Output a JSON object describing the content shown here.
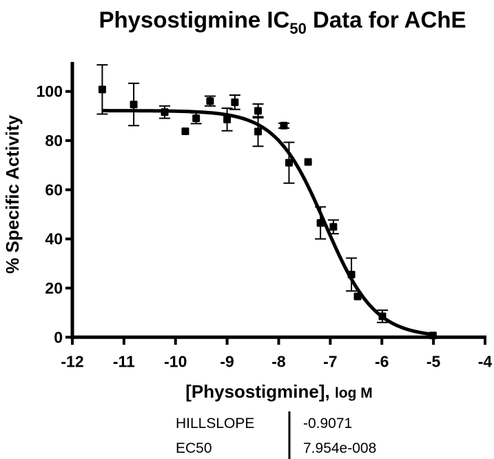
{
  "chart_data": {
    "type": "scatter",
    "title": "Physostigmine IC",
    "title_subscript": "50",
    "title_suffix": " Data for AChE",
    "xlabel": "[Physostigmine], ",
    "xlabel_suffix": "log M",
    "ylabel": "% Specific Activity",
    "xlim": [
      -12,
      -4
    ],
    "ylim": [
      0,
      112
    ],
    "xticks": [
      -12,
      -11,
      -10,
      -9,
      -8,
      -7,
      -6,
      -5,
      -4
    ],
    "xtick_labels": [
      "-12",
      "-11",
      "-10",
      "-9",
      "-8",
      "-7",
      "-6",
      "-5",
      "-4"
    ],
    "yticks": [
      0,
      20,
      40,
      60,
      80,
      100
    ],
    "ytick_labels": [
      "0",
      "20",
      "40",
      "60",
      "80",
      "100"
    ],
    "grid": false,
    "series": [
      {
        "name": "Physostigmine",
        "marker": "square",
        "color": "#000000",
        "points": [
          {
            "x": -11.42,
            "y": 100.8,
            "err": 10.0
          },
          {
            "x": -10.81,
            "y": 94.7,
            "err": 8.6
          },
          {
            "x": -10.21,
            "y": 91.6,
            "err": 2.5
          },
          {
            "x": -9.81,
            "y": 83.8,
            "err": null
          },
          {
            "x": -9.6,
            "y": 89.1,
            "err": 2.2
          },
          {
            "x": -9.33,
            "y": 96.1,
            "err": 2.0
          },
          {
            "x": -9.0,
            "y": 88.6,
            "err": 4.6
          },
          {
            "x": -8.85,
            "y": 95.6,
            "err": 2.9
          },
          {
            "x": -8.4,
            "y": 92.1,
            "err": 2.8
          },
          {
            "x": -8.4,
            "y": 83.7,
            "err": 6.0
          },
          {
            "x": -7.9,
            "y": 86.1,
            "err": 1.0
          },
          {
            "x": -7.8,
            "y": 71.0,
            "err": 8.3
          },
          {
            "x": -7.43,
            "y": 71.3,
            "err": null
          },
          {
            "x": -7.19,
            "y": 46.5,
            "err": 6.5
          },
          {
            "x": -6.94,
            "y": 44.9,
            "err": 2.8
          },
          {
            "x": -6.59,
            "y": 25.5,
            "err": 6.7
          },
          {
            "x": -6.47,
            "y": 16.6,
            "err": null
          },
          {
            "x": -5.99,
            "y": 8.5,
            "err": 2.5
          },
          {
            "x": -5.01,
            "y": 0.7,
            "err": null
          }
        ]
      }
    ],
    "fit": {
      "model": "sigmoidal dose-response (variable slope)",
      "top": 92.2,
      "bottom": 0,
      "hillslope": -0.9071,
      "ec50": 7.954e-08,
      "x_range": [
        -11.42,
        -5.0
      ]
    },
    "results_table": [
      {
        "label": "HILLSLOPE",
        "value": "-0.9071"
      },
      {
        "label": "EC50",
        "value": "7.954e-008"
      }
    ]
  }
}
